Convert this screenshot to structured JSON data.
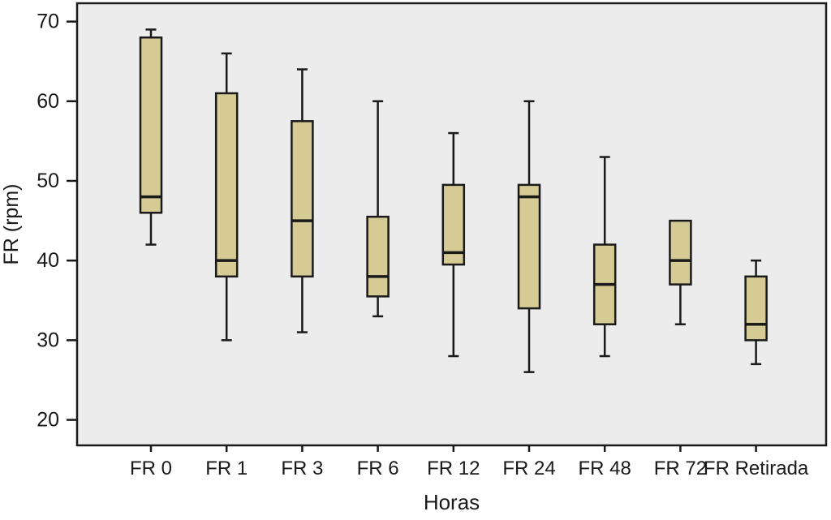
{
  "chart_data": {
    "type": "boxplot",
    "title": "",
    "xlabel": "Horas",
    "ylabel": "FR (rpm)",
    "ylim": [
      16.8,
      72.3
    ],
    "yticks": [
      20,
      30,
      40,
      50,
      60,
      70
    ],
    "grid": false,
    "legend": false,
    "categories": [
      "FR 0",
      "FR 1",
      "FR 3",
      "FR 6",
      "FR 12",
      "FR 24",
      "FR 48",
      "FR 72",
      "FR Retirada"
    ],
    "boxes": [
      {
        "label": "FR 0",
        "min": 42,
        "q1": 46,
        "median": 48,
        "q3": 68,
        "max": 69
      },
      {
        "label": "FR 1",
        "min": 30,
        "q1": 38,
        "median": 40,
        "q3": 61,
        "max": 66
      },
      {
        "label": "FR 3",
        "min": 31,
        "q1": 38,
        "median": 45,
        "q3": 57.5,
        "max": 64
      },
      {
        "label": "FR 6",
        "min": 33,
        "q1": 35.5,
        "median": 38,
        "q3": 45.5,
        "max": 60
      },
      {
        "label": "FR 12",
        "min": 28,
        "q1": 39.5,
        "median": 41,
        "q3": 49.5,
        "max": 56
      },
      {
        "label": "FR 24",
        "min": 26,
        "q1": 34,
        "median": 48,
        "q3": 49.5,
        "max": 60
      },
      {
        "label": "FR 48",
        "min": 28,
        "q1": 32,
        "median": 37,
        "q3": 42,
        "max": 53
      },
      {
        "label": "FR 72",
        "min": 32,
        "q1": 37,
        "median": 40,
        "q3": 45,
        "max": 45
      },
      {
        "label": "FR Retirada",
        "min": 27,
        "q1": 30,
        "median": 32,
        "q3": 38,
        "max": 40
      }
    ]
  },
  "style": {
    "box_fill": "#D6CB95",
    "plot_background": "#ECECEC",
    "line_color": "#1A1A1A",
    "page_background": "#FFFFFF"
  }
}
